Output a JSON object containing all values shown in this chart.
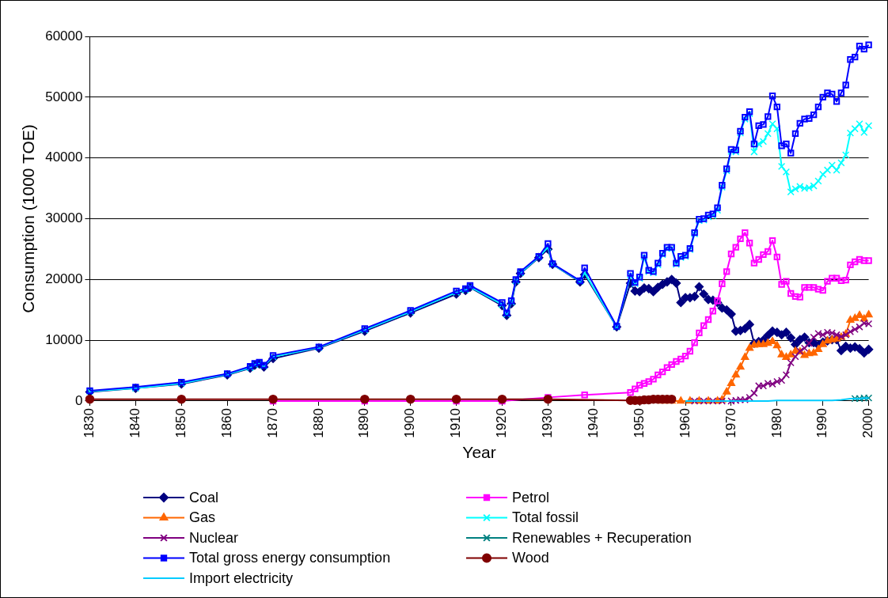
{
  "chart_data": {
    "type": "line",
    "xlabel": "Year",
    "ylabel": "Consumption (1000 TOE)",
    "xlim": [
      1830,
      2000
    ],
    "xticks": [
      1830,
      1840,
      1850,
      1860,
      1870,
      1880,
      1890,
      1900,
      1910,
      1920,
      1930,
      1940,
      1950,
      1960,
      1970,
      1980,
      1990,
      2000
    ],
    "ylim": [
      0,
      60000
    ],
    "yticks": [
      0,
      10000,
      20000,
      30000,
      40000,
      50000,
      60000
    ],
    "grid": "y",
    "legend": "bottom",
    "series": [
      {
        "name": "Coal",
        "color": "#000080",
        "marker": "diamond",
        "x": [
          1830,
          1840,
          1850,
          1860,
          1865,
          1866,
          1867,
          1868,
          1870,
          1880,
          1890,
          1900,
          1910,
          1912,
          1913,
          1920,
          1921,
          1922,
          1923,
          1924,
          1928,
          1930,
          1931,
          1937,
          1938,
          1945,
          1948,
          1949,
          1950,
          1951,
          1952,
          1953,
          1954,
          1955,
          1956,
          1957,
          1958,
          1959,
          1960,
          1961,
          1962,
          1963,
          1964,
          1965,
          1966,
          1967,
          1968,
          1969,
          1970,
          1971,
          1972,
          1973,
          1974,
          1975,
          1976,
          1977,
          1978,
          1979,
          1980,
          1981,
          1982,
          1983,
          1984,
          1985,
          1986,
          1987,
          1988,
          1989,
          1990,
          1991,
          1992,
          1993,
          1994,
          1995,
          1996,
          1997,
          1998,
          1999,
          2000
        ],
        "values": [
          1500,
          2100,
          2800,
          4300,
          5400,
          5900,
          6100,
          5600,
          7000,
          8700,
          11500,
          14500,
          17600,
          18200,
          18700,
          15700,
          14100,
          16000,
          19600,
          21000,
          23600,
          25000,
          22500,
          19600,
          20800,
          12200,
          19400,
          18100,
          18000,
          18600,
          18500,
          18000,
          18700,
          19200,
          19600,
          20000,
          19400,
          16200,
          17000,
          17000,
          17200,
          18800,
          17600,
          16700,
          16600,
          16200,
          15300,
          15000,
          14300,
          11500,
          11600,
          11900,
          12600,
          9500,
          9800,
          10000,
          10800,
          11500,
          11300,
          10900,
          11300,
          10400,
          9300,
          10100,
          10500,
          9600,
          9600,
          9200,
          9700,
          9900,
          10100,
          10100,
          8300,
          9000,
          8700,
          8900,
          8600,
          7900,
          8500
        ]
      },
      {
        "name": "Petrol",
        "color": "#ff00ff",
        "marker": "square",
        "x": [
          1870,
          1890,
          1910,
          1920,
          1930,
          1938,
          1948,
          1949,
          1950,
          1951,
          1952,
          1953,
          1954,
          1955,
          1956,
          1957,
          1958,
          1959,
          1960,
          1961,
          1962,
          1963,
          1964,
          1965,
          1966,
          1967,
          1968,
          1969,
          1970,
          1971,
          1972,
          1973,
          1974,
          1975,
          1976,
          1977,
          1978,
          1979,
          1980,
          1981,
          1982,
          1983,
          1984,
          1985,
          1986,
          1987,
          1988,
          1989,
          1990,
          1991,
          1992,
          1993,
          1994,
          1995,
          1996,
          1997,
          1998,
          1999,
          2000
        ],
        "values": [
          0,
          0,
          0,
          0,
          600,
          1000,
          1400,
          2000,
          2600,
          2900,
          3200,
          3600,
          4300,
          4800,
          5500,
          6000,
          6500,
          6900,
          7400,
          8200,
          9600,
          11200,
          12400,
          13400,
          14800,
          16500,
          19300,
          21300,
          24200,
          25300,
          26700,
          27700,
          26000,
          22700,
          23300,
          24100,
          24600,
          26400,
          23700,
          19200,
          19700,
          17700,
          17200,
          17100,
          18700,
          18700,
          18700,
          18400,
          18200,
          19700,
          20200,
          20200,
          19800,
          19900,
          22400,
          22900,
          23300,
          23100,
          23100
        ]
      },
      {
        "name": "Gas",
        "color": "#ff6600",
        "marker": "triangle",
        "x": [
          1955,
          1957,
          1959,
          1961,
          1963,
          1965,
          1967,
          1968,
          1969,
          1970,
          1971,
          1972,
          1973,
          1974,
          1975,
          1976,
          1977,
          1978,
          1979,
          1980,
          1981,
          1982,
          1983,
          1984,
          1985,
          1986,
          1987,
          1988,
          1989,
          1990,
          1991,
          1992,
          1993,
          1994,
          1995,
          1996,
          1997,
          1998,
          1999,
          2000
        ],
        "values": [
          0,
          0,
          0,
          0,
          0,
          0,
          0,
          200,
          1500,
          2900,
          4300,
          5600,
          7200,
          8700,
          9200,
          9300,
          9300,
          9500,
          9800,
          9100,
          7600,
          7200,
          7600,
          8200,
          8100,
          7500,
          7800,
          7900,
          8500,
          9300,
          9900,
          10100,
          10200,
          10500,
          11000,
          13300,
          13600,
          14100,
          13500,
          14200
        ]
      },
      {
        "name": "Total fossil",
        "color": "#00ffff",
        "marker": "cross",
        "x": [
          1830,
          1840,
          1850,
          1860,
          1865,
          1866,
          1867,
          1868,
          1870,
          1880,
          1890,
          1900,
          1910,
          1912,
          1913,
          1920,
          1921,
          1922,
          1923,
          1924,
          1928,
          1930,
          1931,
          1937,
          1938,
          1945,
          1948,
          1949,
          1950,
          1951,
          1952,
          1953,
          1954,
          1955,
          1956,
          1957,
          1958,
          1959,
          1960,
          1961,
          1962,
          1963,
          1964,
          1965,
          1966,
          1967,
          1968,
          1969,
          1970,
          1971,
          1972,
          1973,
          1974,
          1975,
          1976,
          1977,
          1978,
          1979,
          1980,
          1981,
          1982,
          1983,
          1984,
          1985,
          1986,
          1987,
          1988,
          1989,
          1990,
          1991,
          1992,
          1993,
          1994,
          1995,
          1996,
          1997,
          1998,
          1999,
          2000
        ],
        "values": [
          1600,
          2100,
          2900,
          4400,
          5500,
          6000,
          6200,
          5800,
          7300,
          8800,
          11700,
          14700,
          17900,
          18300,
          18800,
          15900,
          14300,
          16300,
          19800,
          21100,
          23700,
          25300,
          22500,
          19700,
          21100,
          12200,
          20700,
          19300,
          20200,
          23700,
          21300,
          21100,
          22400,
          24100,
          25100,
          25100,
          22500,
          23600,
          23800,
          24900,
          27500,
          29700,
          29800,
          30300,
          30500,
          31400,
          35200,
          37900,
          41100,
          41000,
          44100,
          46400,
          47300,
          41000,
          42300,
          42700,
          44000,
          45600,
          44800,
          38600,
          37700,
          34400,
          34900,
          35300,
          35000,
          35100,
          35400,
          36200,
          37300,
          38000,
          38800,
          38000,
          39200,
          40500,
          44100,
          44800,
          45600,
          44200,
          45300
        ]
      },
      {
        "name": "Nuclear",
        "color": "#800080",
        "marker": "cross",
        "x": [
          1962,
          1964,
          1966,
          1968,
          1970,
          1971,
          1972,
          1973,
          1974,
          1975,
          1976,
          1977,
          1978,
          1979,
          1980,
          1981,
          1982,
          1983,
          1984,
          1985,
          1986,
          1987,
          1988,
          1989,
          1990,
          1991,
          1992,
          1993,
          1994,
          1995,
          1996,
          1997,
          1998,
          1999,
          2000
        ],
        "values": [
          0,
          0,
          0,
          0,
          0,
          100,
          200,
          200,
          600,
          1300,
          2500,
          2500,
          2900,
          2800,
          3200,
          3400,
          4300,
          6300,
          7300,
          8200,
          8700,
          9500,
          10500,
          11100,
          10900,
          11300,
          11200,
          10900,
          10600,
          10900,
          11400,
          11800,
          12200,
          12800,
          12700
        ]
      },
      {
        "name": "Renewables + Recuperation",
        "color": "#008080",
        "marker": "cross",
        "x": [
          1997,
          1998,
          1999,
          2000
        ],
        "values": [
          400,
          400,
          500,
          500
        ]
      },
      {
        "name": "Total gross energy consumption",
        "color": "#0000ff",
        "marker": "square",
        "x": [
          1830,
          1840,
          1850,
          1860,
          1865,
          1866,
          1867,
          1868,
          1870,
          1880,
          1890,
          1900,
          1910,
          1912,
          1913,
          1920,
          1921,
          1922,
          1923,
          1924,
          1928,
          1930,
          1931,
          1937,
          1938,
          1945,
          1948,
          1949,
          1950,
          1951,
          1952,
          1953,
          1954,
          1955,
          1956,
          1957,
          1958,
          1959,
          1960,
          1961,
          1962,
          1963,
          1964,
          1965,
          1966,
          1967,
          1968,
          1969,
          1970,
          1971,
          1972,
          1973,
          1974,
          1975,
          1976,
          1977,
          1978,
          1979,
          1980,
          1981,
          1982,
          1983,
          1984,
          1985,
          1986,
          1987,
          1988,
          1989,
          1990,
          1991,
          1992,
          1993,
          1994,
          1995,
          1996,
          1997,
          1998,
          1999,
          2000
        ],
        "values": [
          1700,
          2300,
          3100,
          4500,
          5700,
          6200,
          6400,
          5900,
          7500,
          8900,
          11900,
          14900,
          18100,
          18500,
          19000,
          16200,
          14500,
          16500,
          20000,
          21300,
          23800,
          25900,
          22600,
          19800,
          21900,
          12300,
          21000,
          19500,
          20400,
          24000,
          21500,
          21300,
          22700,
          24300,
          25300,
          25300,
          22700,
          23800,
          24000,
          25100,
          27700,
          29900,
          30000,
          30600,
          30800,
          31800,
          35500,
          38200,
          41400,
          41300,
          44400,
          46700,
          47600,
          42300,
          45300,
          45500,
          46800,
          50200,
          48400,
          42000,
          42300,
          40800,
          44000,
          45700,
          46400,
          46500,
          47100,
          48400,
          50000,
          50700,
          50500,
          49300,
          50700,
          52000,
          56200,
          56600,
          58400,
          57900,
          58600
        ]
      },
      {
        "name": "Wood",
        "color": "#800000",
        "marker": "circle",
        "x": [
          1830,
          1850,
          1870,
          1890,
          1900,
          1910,
          1920,
          1930,
          1948,
          1949,
          1950,
          1951,
          1952,
          1953,
          1954,
          1955,
          1956,
          1957
        ],
        "values": [
          300,
          300,
          300,
          300,
          300,
          300,
          300,
          300,
          100,
          100,
          100,
          200,
          200,
          300,
          300,
          300,
          300,
          300
        ]
      },
      {
        "name": "Import electricity",
        "color": "#00ccff",
        "marker": "none",
        "x": [
          1960,
          1962,
          1964,
          1966,
          1968,
          1970,
          1972,
          1974,
          1976,
          1978,
          1980,
          1982,
          1984,
          1986,
          1988,
          1990,
          1992,
          1994,
          1995,
          1996,
          1997,
          1998,
          1999,
          2000
        ],
        "values": [
          0,
          0,
          0,
          0,
          0,
          0,
          0,
          0,
          0,
          0,
          100,
          100,
          100,
          100,
          100,
          100,
          100,
          200,
          300,
          400,
          400,
          400,
          500,
          500
        ]
      }
    ]
  }
}
